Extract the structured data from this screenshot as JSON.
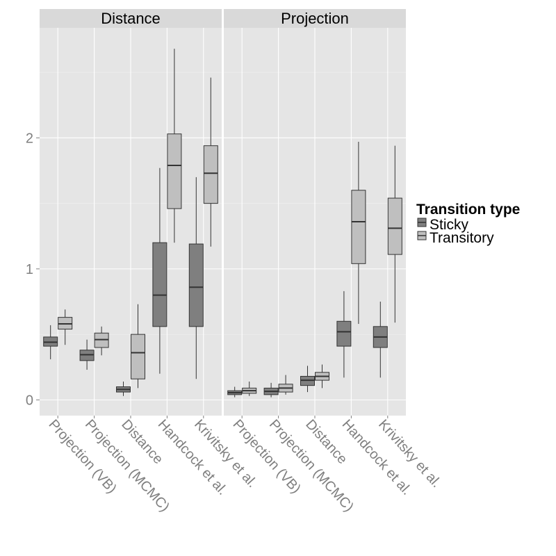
{
  "chart_data": {
    "type": "boxplot",
    "title": "",
    "xlabel": "",
    "ylabel": "",
    "ylim": [
      -0.12,
      2.84
    ],
    "y_ticks": [
      0,
      1,
      2
    ],
    "y_tick_labels": [
      "0",
      "1",
      "2"
    ],
    "grid": true,
    "categories": [
      "Projection (VB)",
      "Projection (MCMC)",
      "Distance",
      "Handcock et al.",
      "Krivitsky et al."
    ],
    "legend": {
      "title": "Transition type",
      "position": "right",
      "entries": [
        {
          "name": "Sticky",
          "color": "#7f7f7f"
        },
        {
          "name": "Transitory",
          "color": "#bfbfbf"
        }
      ]
    },
    "panels": [
      {
        "name": "Distance",
        "series": [
          {
            "name": "Sticky",
            "boxes": [
              {
                "min": 0.31,
                "q1": 0.41,
                "median": 0.44,
                "q3": 0.48,
                "max": 0.57
              },
              {
                "min": 0.23,
                "q1": 0.3,
                "median": 0.345,
                "q3": 0.38,
                "max": 0.46
              },
              {
                "min": 0.03,
                "q1": 0.06,
                "median": 0.08,
                "q3": 0.1,
                "max": 0.14
              },
              {
                "min": 0.2,
                "q1": 0.56,
                "median": 0.8,
                "q3": 1.2,
                "max": 1.77
              },
              {
                "min": 0.16,
                "q1": 0.56,
                "median": 0.86,
                "q3": 1.19,
                "max": 1.7
              }
            ]
          },
          {
            "name": "Transitory",
            "boxes": [
              {
                "min": 0.42,
                "q1": 0.54,
                "median": 0.58,
                "q3": 0.63,
                "max": 0.69
              },
              {
                "min": 0.34,
                "q1": 0.4,
                "median": 0.46,
                "q3": 0.51,
                "max": 0.56
              },
              {
                "min": 0.09,
                "q1": 0.16,
                "median": 0.36,
                "q3": 0.5,
                "max": 0.73
              },
              {
                "min": 1.2,
                "q1": 1.46,
                "median": 1.79,
                "q3": 2.03,
                "max": 2.68
              },
              {
                "min": 1.17,
                "q1": 1.5,
                "median": 1.73,
                "q3": 1.94,
                "max": 2.46
              }
            ]
          }
        ]
      },
      {
        "name": "Projection",
        "series": [
          {
            "name": "Sticky",
            "boxes": [
              {
                "min": 0.02,
                "q1": 0.04,
                "median": 0.055,
                "q3": 0.07,
                "max": 0.1
              },
              {
                "min": 0.02,
                "q1": 0.04,
                "median": 0.065,
                "q3": 0.09,
                "max": 0.13
              },
              {
                "min": 0.06,
                "q1": 0.11,
                "median": 0.15,
                "q3": 0.18,
                "max": 0.26
              },
              {
                "min": 0.17,
                "q1": 0.41,
                "median": 0.52,
                "q3": 0.6,
                "max": 0.83
              },
              {
                "min": 0.17,
                "q1": 0.4,
                "median": 0.48,
                "q3": 0.56,
                "max": 0.75
              }
            ]
          },
          {
            "name": "Transitory",
            "boxes": [
              {
                "min": 0.03,
                "q1": 0.05,
                "median": 0.07,
                "q3": 0.09,
                "max": 0.14
              },
              {
                "min": 0.04,
                "q1": 0.06,
                "median": 0.09,
                "q3": 0.12,
                "max": 0.19
              },
              {
                "min": 0.09,
                "q1": 0.15,
                "median": 0.18,
                "q3": 0.21,
                "max": 0.27
              },
              {
                "min": 0.58,
                "q1": 1.04,
                "median": 1.36,
                "q3": 1.6,
                "max": 1.97
              },
              {
                "min": 0.59,
                "q1": 1.11,
                "median": 1.31,
                "q3": 1.54,
                "max": 1.94
              }
            ]
          }
        ]
      }
    ]
  }
}
